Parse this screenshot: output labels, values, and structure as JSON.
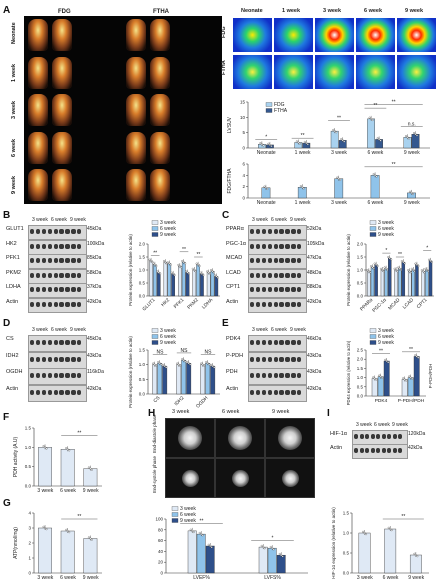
{
  "panels": {
    "A": "A",
    "B": "B",
    "C": "C",
    "D": "D",
    "E": "E",
    "F": "F",
    "G": "G",
    "H": "H",
    "I": "I"
  },
  "panel_a": {
    "pet_cols": [
      "FDG",
      "FTHA"
    ],
    "pet_rows": [
      "Neonate",
      "1 week",
      "3 week",
      "6 week",
      "9 week"
    ],
    "heat_cols": [
      "Neonate",
      "1 week",
      "3 week",
      "6 week",
      "9 week"
    ],
    "heat_rows": [
      "FDG",
      "FTHA"
    ]
  },
  "blots": {
    "B": {
      "cols": [
        "3 week",
        "6 week",
        "9 week"
      ],
      "rows": [
        "GLUT1",
        "HK2",
        "PFK1",
        "PKM2",
        "LDHA",
        "Actin"
      ],
      "kda": [
        "45kDa",
        "100kDa",
        "85kDa",
        "58kDa",
        "37kDa",
        "42kDa"
      ]
    },
    "C": {
      "cols": [
        "3 week",
        "6 week",
        "9 week"
      ],
      "rows": [
        "PPARα",
        "PGC-1α",
        "MCAD",
        "LCAD",
        "CPT1",
        "Actin"
      ],
      "kda": [
        "52kDa",
        "105kDa",
        "47kDa",
        "48kDa",
        "88kDa",
        "42kDa"
      ]
    },
    "D": {
      "cols": [
        "3 week",
        "6 week",
        "9 week"
      ],
      "rows": [
        "CS",
        "IDH2",
        "OGDH",
        "Actin"
      ],
      "kda": [
        "45kDa",
        "43kDa",
        "116kDa",
        "42kDa"
      ]
    },
    "E": {
      "cols": [
        "3 week",
        "6 week",
        "9 week"
      ],
      "rows": [
        "PDK4",
        "P-PDH",
        "PDH",
        "Actin"
      ],
      "kda": [
        "46kDa",
        "43kDa",
        "43kDa",
        "42kDa"
      ]
    },
    "I": {
      "cols": [
        "3 week",
        "6 week",
        "9 week"
      ],
      "rows": [
        "HIF-1α",
        "Actin"
      ],
      "kda": [
        "120kDa",
        "42kDa"
      ]
    }
  },
  "mri": {
    "cols": [
      "3 week",
      "6 week",
      "9 week"
    ],
    "rows": [
      "End-diastole phase",
      "End-systole phase"
    ]
  },
  "legend3": [
    "3 week",
    "6 week",
    "9 week"
  ],
  "colors": {
    "w3": "#dfe9f5",
    "w6": "#8fc3ea",
    "w9": "#2e4f8a",
    "fdg": "#a9d2ef",
    "ftha": "#34588f"
  },
  "chart_data": [
    {
      "id": "A-lvsuv",
      "type": "bar",
      "ylabel": "LVSUV",
      "ylim": [
        0,
        15
      ],
      "yticks": [
        0,
        5,
        10,
        15
      ],
      "categories": [
        "Neonate",
        "1 week",
        "3 week",
        "6 week",
        "9 week"
      ],
      "series": [
        {
          "name": "FDG",
          "values": [
            1.2,
            1.8,
            5.5,
            9.5,
            3.5
          ]
        },
        {
          "name": "FTHA",
          "values": [
            1.0,
            1.6,
            2.5,
            2.8,
            4.5
          ]
        }
      ],
      "significance": [
        "*",
        "**",
        "**",
        "**",
        "**",
        "n.s."
      ]
    },
    {
      "id": "A-ratio",
      "type": "bar",
      "ylabel": "FDG/FTHA",
      "ylim": [
        0,
        6
      ],
      "yticks": [
        0,
        2,
        4,
        6
      ],
      "categories": [
        "Neonate",
        "1 week",
        "3 week",
        "6 week",
        "9 week"
      ],
      "values": [
        1.8,
        1.9,
        3.4,
        4.0,
        0.9
      ],
      "significance": [
        "**"
      ]
    },
    {
      "id": "B",
      "type": "bar",
      "ylabel": "Protein expression (relative to actin)",
      "ylim": [
        0,
        2.0
      ],
      "yticks": [
        "0.0",
        "0.5",
        "1.0",
        "1.5",
        "2.0"
      ],
      "categories": [
        "GLUT1",
        "HK2",
        "PFK1",
        "PKM2",
        "LDHA"
      ],
      "series": [
        {
          "name": "3 week",
          "values": [
            1.35,
            1.3,
            1.15,
            1.0,
            0.9
          ]
        },
        {
          "name": "6 week",
          "values": [
            1.2,
            1.25,
            1.3,
            1.2,
            0.95
          ]
        },
        {
          "name": "9 week",
          "values": [
            0.9,
            0.85,
            0.9,
            0.85,
            0.75
          ]
        }
      ],
      "significance": [
        "**",
        "**",
        "**",
        "**",
        "*",
        "**"
      ]
    },
    {
      "id": "C",
      "type": "bar",
      "ylabel": "Protein expression (relative to actin)",
      "ylim": [
        0,
        2.0
      ],
      "yticks": [
        "0.0",
        "0.5",
        "1.0",
        "1.5",
        "2.0"
      ],
      "categories": [
        "PPARα",
        "PGC-1α",
        "MCAD",
        "LCAD",
        "CPT1"
      ],
      "series": [
        {
          "name": "3 week",
          "values": [
            0.95,
            1.0,
            1.0,
            0.95,
            0.95
          ]
        },
        {
          "name": "6 week",
          "values": [
            1.1,
            1.05,
            1.05,
            1.0,
            1.0
          ]
        },
        {
          "name": "9 week",
          "values": [
            1.2,
            1.45,
            1.3,
            1.2,
            1.35
          ]
        }
      ],
      "significance": [
        "*",
        "**",
        "*",
        "*"
      ]
    },
    {
      "id": "D",
      "type": "bar",
      "ylabel": "Protein expression (relative to actin)",
      "ylim": [
        0,
        1.5
      ],
      "yticks": [
        "0.0",
        "0.5",
        "1.0",
        "1.5"
      ],
      "categories": [
        "CS",
        "IDH2",
        "OGDH"
      ],
      "series": [
        {
          "name": "3 week",
          "values": [
            1.0,
            1.0,
            1.0
          ]
        },
        {
          "name": "6 week",
          "values": [
            1.05,
            1.15,
            1.05
          ]
        },
        {
          "name": "9 week",
          "values": [
            0.95,
            1.05,
            0.95
          ]
        }
      ],
      "significance": [
        "NS",
        "NS",
        "NS"
      ]
    },
    {
      "id": "E",
      "type": "bar",
      "ylabel": "PDK4 expression (relative to actin)",
      "ylabel2": "P-PDH/PDH",
      "ylim": [
        0,
        2.5
      ],
      "yticks": [
        "0.0",
        "0.5",
        "1.0",
        "1.5",
        "2.0",
        "2.5"
      ],
      "ylim2": [
        0,
        2.0
      ],
      "categories": [
        "PDK4",
        "P-PDH/PDH"
      ],
      "series": [
        {
          "name": "3 week",
          "values": [
            0.95,
            0.9
          ]
        },
        {
          "name": "6 week",
          "values": [
            1.05,
            1.0
          ]
        },
        {
          "name": "9 week",
          "values": [
            1.9,
            2.15
          ]
        }
      ],
      "significance": [
        "**",
        "**",
        "**"
      ]
    },
    {
      "id": "F",
      "type": "bar",
      "ylabel": "PDH activity (A.U)",
      "ylim": [
        0,
        1.5
      ],
      "yticks": [
        "0.0",
        "0.5",
        "1.0",
        "1.5"
      ],
      "categories": [
        "3 week",
        "6 week",
        "9 week"
      ],
      "values": [
        1.0,
        0.95,
        0.45
      ],
      "significance": [
        "**"
      ]
    },
    {
      "id": "G-atp",
      "type": "bar",
      "ylabel": "ATP(nmol/mg)",
      "ylim": [
        0,
        4
      ],
      "yticks": [
        "0",
        "1",
        "2",
        "3",
        "4"
      ],
      "categories": [
        "3 week",
        "6 week",
        "9 week"
      ],
      "values": [
        3.0,
        2.8,
        2.3
      ],
      "significance": [
        "**"
      ]
    },
    {
      "id": "G-lv",
      "type": "bar",
      "ylim": [
        0,
        100
      ],
      "yticks": [
        "0",
        "20",
        "40",
        "60",
        "80",
        "100"
      ],
      "categories": [
        "LVEF%",
        "LVFS%"
      ],
      "series": [
        {
          "name": "3 week",
          "values": [
            78,
            48
          ]
        },
        {
          "name": "6 week",
          "values": [
            72,
            46
          ]
        },
        {
          "name": "9 week",
          "values": [
            50,
            33
          ]
        }
      ],
      "significance": [
        "**",
        "*"
      ]
    },
    {
      "id": "I",
      "type": "bar",
      "ylabel": "HIF-1α expression (relative to actin)",
      "ylim": [
        0,
        1.5
      ],
      "yticks": [
        "0.0",
        "0.5",
        "1.0",
        "1.5"
      ],
      "categories": [
        "3 week",
        "6 week",
        "9 week"
      ],
      "values": [
        1.0,
        1.1,
        0.45
      ],
      "significance": [
        "**"
      ]
    }
  ]
}
